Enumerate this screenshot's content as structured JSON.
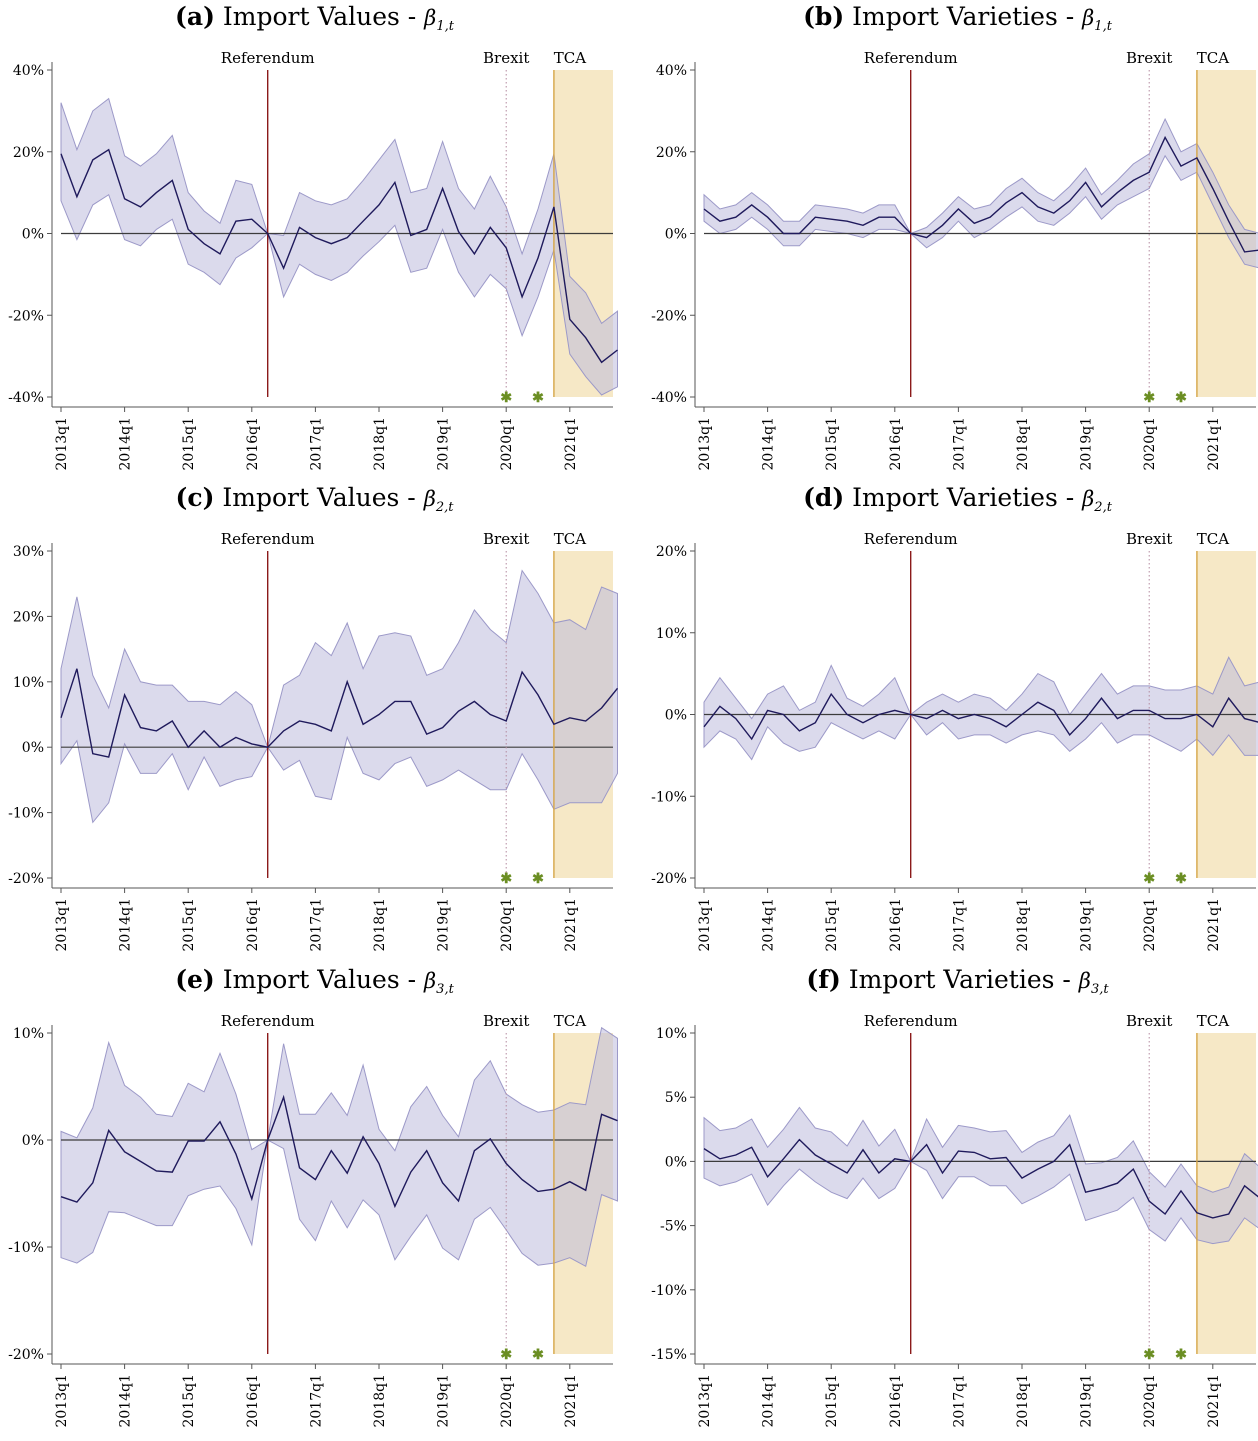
{
  "colors": {
    "line": "#1f1a5c",
    "band": "#bdbbdc",
    "band_stroke": "#9c99c8",
    "zero": "#3c3c3c",
    "referendum": "#8b1a1a",
    "brexit": "#b48aa0",
    "tca": "#d6a648",
    "tca_shade": "#f1dca8",
    "star": "#6b8e23"
  },
  "event_labels": {
    "referendum": "Referendum",
    "brexit": "Brexit",
    "tca": "TCA"
  },
  "star_glyph": "✱",
  "x_ticks": [
    "2013q1",
    "2014q1",
    "2015q1",
    "2016q1",
    "2017q1",
    "2018q1",
    "2019q1",
    "2020q1",
    "2021q1"
  ],
  "chart_data": [
    {
      "id": "a",
      "type": "line",
      "tag": "(a)",
      "title": "Import Values - ",
      "beta": "β",
      "beta_sub": "1,t",
      "x_start": "2013q1",
      "y_ticks": [
        40,
        20,
        0,
        -20,
        -40
      ],
      "ylim": [
        -40,
        40
      ],
      "events": {
        "referendum": "2016q2",
        "brexit": "2020q1",
        "tca": "2020q4"
      },
      "stars_at": [
        "2020q1",
        "2020q3"
      ],
      "series": [
        {
          "estimate": [
            19.5,
            9,
            18,
            20.5,
            8.5,
            6.5,
            10,
            13,
            1,
            -2.5,
            -5,
            3,
            3.5,
            0,
            -8.5,
            1.5,
            -1,
            -2.5,
            -1,
            3,
            7,
            12.5,
            -0.5,
            1,
            11,
            0.5,
            -5,
            1.5,
            -3.5,
            -15.5,
            -6,
            6.5,
            -21,
            -25.5,
            -31.5,
            -28.5
          ],
          "upper": [
            32,
            20.5,
            30,
            33,
            19,
            16.5,
            19.5,
            24,
            10,
            5.5,
            2.5,
            13,
            12,
            0,
            -0.5,
            10,
            8,
            7,
            8.5,
            13,
            18,
            23,
            10,
            11,
            22.5,
            11,
            6,
            14,
            6.5,
            -5,
            6,
            19.5,
            -10.5,
            -14.5,
            -22,
            -19
          ],
          "lower": [
            8,
            -1.5,
            7,
            9.5,
            -1.5,
            -3,
            1,
            3.5,
            -7.5,
            -9.5,
            -12.5,
            -6,
            -3.5,
            0,
            -15.5,
            -7.5,
            -10,
            -11.5,
            -9.5,
            -5.5,
            -2,
            2,
            -9.5,
            -8.5,
            1,
            -9.5,
            -15.5,
            -10,
            -13.5,
            -25,
            -15.5,
            -4,
            -29.5,
            -35,
            -39.5,
            -37.5
          ]
        }
      ]
    },
    {
      "id": "b",
      "type": "line",
      "tag": "(b)",
      "title": "Import Varieties - ",
      "beta": "β",
      "beta_sub": "1,t",
      "x_start": "2013q1",
      "y_ticks": [
        40,
        20,
        0,
        -20,
        -40
      ],
      "ylim": [
        -40,
        40
      ],
      "events": {
        "referendum": "2016q2",
        "brexit": "2020q1",
        "tca": "2020q4"
      },
      "stars_at": [
        "2020q1",
        "2020q3"
      ],
      "series": [
        {
          "estimate": [
            6,
            3,
            4,
            7,
            4,
            0,
            0,
            4,
            3.5,
            3,
            2,
            4,
            4,
            0,
            -1,
            2,
            6,
            2.5,
            4,
            7.5,
            10,
            6.5,
            5,
            8,
            12.5,
            6.5,
            10,
            13,
            15,
            23.5,
            16.5,
            18.5,
            11,
            3,
            -4.5,
            -4
          ],
          "upper": [
            9.5,
            6,
            7,
            10,
            7,
            3,
            3,
            7,
            6.5,
            6,
            5,
            7,
            7,
            0,
            1.5,
            5,
            9,
            6,
            7,
            11,
            13.5,
            10,
            8,
            11.5,
            16,
            9.5,
            13,
            17,
            19.5,
            28,
            20,
            22,
            15,
            7,
            1,
            0
          ],
          "lower": [
            3,
            0,
            1,
            4,
            1,
            -3,
            -3,
            1,
            0.5,
            0,
            -1,
            1,
            1,
            0,
            -3.5,
            -1,
            3,
            -1,
            1,
            4,
            6.5,
            3,
            2,
            5,
            9,
            3.5,
            7,
            9,
            11,
            19,
            13,
            15,
            7,
            -1,
            -7.5,
            -8.5
          ]
        }
      ]
    },
    {
      "id": "c",
      "type": "line",
      "tag": "(c)",
      "title": "Import Values - ",
      "beta": "β",
      "beta_sub": "2,t",
      "x_start": "2013q1",
      "y_ticks": [
        30,
        20,
        10,
        0,
        -10,
        -20
      ],
      "ylim": [
        -20,
        30
      ],
      "events": {
        "referendum": "2016q2",
        "brexit": "2020q1",
        "tca": "2020q4"
      },
      "stars_at": [
        "2020q1",
        "2020q3"
      ],
      "series": [
        {
          "estimate": [
            4.5,
            12,
            -1,
            -1.5,
            8,
            3,
            2.5,
            4,
            0,
            2.5,
            0,
            1.5,
            0.5,
            0,
            2.5,
            4,
            3.5,
            2.5,
            10,
            3.5,
            5,
            7,
            7,
            2,
            3,
            5.5,
            7,
            5,
            4,
            11.5,
            8,
            3.5,
            4.5,
            4,
            6,
            9
          ],
          "upper": [
            12,
            23,
            11,
            6,
            15,
            10,
            9.5,
            9.5,
            7,
            7,
            6.5,
            8.5,
            6.5,
            0,
            9.5,
            11,
            16,
            14,
            19,
            12,
            17,
            17.5,
            17,
            11,
            12,
            16,
            21,
            18,
            16,
            27,
            23.5,
            19,
            19.5,
            18,
            24.5,
            23.5
          ],
          "lower": [
            -2.5,
            1,
            -11.5,
            -8.5,
            0.5,
            -4,
            -4,
            -1,
            -6.5,
            -1.5,
            -6,
            -5,
            -4.5,
            0,
            -3.5,
            -2,
            -7.5,
            -8,
            1.5,
            -4,
            -5,
            -2.5,
            -1.5,
            -6,
            -5,
            -3.5,
            -5,
            -6.5,
            -6.5,
            -1,
            -5,
            -9.5,
            -8.5,
            -8.5,
            -8.5,
            -4
          ]
        }
      ]
    },
    {
      "id": "d",
      "type": "line",
      "tag": "(d)",
      "title": "Import Varieties - ",
      "beta": "β",
      "beta_sub": "2,t",
      "x_start": "2013q1",
      "y_ticks": [
        20,
        10,
        0,
        -10,
        -20
      ],
      "ylim": [
        -20,
        20
      ],
      "events": {
        "referendum": "2016q2",
        "brexit": "2020q1",
        "tca": "2020q4"
      },
      "stars_at": [
        "2020q1",
        "2020q3"
      ],
      "series": [
        {
          "estimate": [
            -1.5,
            1,
            -0.5,
            -3,
            0.5,
            0,
            -2,
            -1,
            2.5,
            0,
            -1,
            0,
            0.5,
            0,
            -0.5,
            0.5,
            -0.5,
            0,
            -0.5,
            -1.5,
            0,
            1.5,
            0.5,
            -2.5,
            -0.5,
            2,
            -0.5,
            0.5,
            0.5,
            -0.5,
            -0.5,
            0,
            -1.5,
            2,
            -0.5,
            -1
          ],
          "upper": [
            1.5,
            4.5,
            2,
            -0.5,
            2.5,
            3.5,
            0.5,
            1.5,
            6,
            2,
            1,
            2.5,
            4.5,
            0,
            1.5,
            2.5,
            1.5,
            2.5,
            2,
            0.5,
            2.5,
            5,
            4,
            0,
            2.5,
            5,
            2.5,
            3.5,
            3.5,
            3,
            3,
            3.5,
            2.5,
            7,
            3.5,
            4
          ],
          "lower": [
            -4,
            -2,
            -3,
            -5.5,
            -1.5,
            -3.5,
            -4.5,
            -4,
            -1,
            -2,
            -3,
            -2,
            -3,
            0,
            -2.5,
            -1,
            -3,
            -2.5,
            -2.5,
            -3.5,
            -2.5,
            -2,
            -2.5,
            -4.5,
            -3,
            -1,
            -3.5,
            -2.5,
            -2.5,
            -3.5,
            -4.5,
            -3,
            -5,
            -2.5,
            -5,
            -5
          ]
        }
      ]
    },
    {
      "id": "e",
      "type": "line",
      "tag": "(e)",
      "title": "Import Values - ",
      "beta": "β",
      "beta_sub": "3,t",
      "x_start": "2013q1",
      "y_ticks": [
        10,
        0,
        -10,
        -20
      ],
      "ylim": [
        -20,
        10
      ],
      "events": {
        "referendum": "2016q2",
        "brexit": "2020q1",
        "tca": "2020q4"
      },
      "stars_at": [
        "2020q1",
        "2020q3"
      ],
      "series": [
        {
          "estimate": [
            -5.3,
            -5.8,
            -4,
            0.9,
            -1.1,
            -2,
            -2.9,
            -3,
            -0.1,
            -0.1,
            1.7,
            -1.3,
            -5.5,
            0,
            4,
            -2.6,
            -3.7,
            -1,
            -3.1,
            0.3,
            -2.2,
            -6.2,
            -3,
            -1,
            -4,
            -5.7,
            -1,
            0.1,
            -2.2,
            -3.7,
            -4.8,
            -4.6,
            -3.9,
            -4.7,
            2.4,
            1.8
          ],
          "upper": [
            0.8,
            0.2,
            3,
            9.1,
            5.1,
            4,
            2.4,
            2.2,
            5.3,
            4.5,
            8.1,
            4.3,
            -0.9,
            0,
            9,
            2.4,
            2.4,
            4.4,
            2.3,
            7,
            1,
            -1,
            3.1,
            5,
            2.3,
            0.3,
            5.6,
            7.4,
            4.3,
            3.3,
            2.6,
            2.8,
            3.5,
            3.3,
            10.5,
            9.5
          ],
          "lower": [
            -11,
            -11.5,
            -10.5,
            -6.7,
            -6.8,
            -7.4,
            -8,
            -8,
            -5.2,
            -4.6,
            -4.3,
            -6.4,
            -9.8,
            0,
            -0.8,
            -7.4,
            -9.4,
            -5.7,
            -8.2,
            -5.6,
            -7,
            -11.2,
            -9,
            -7,
            -10.1,
            -11.2,
            -7.4,
            -6.3,
            -8.4,
            -10.6,
            -11.7,
            -11.5,
            -11,
            -11.8,
            -5.1,
            -5.7
          ]
        }
      ]
    },
    {
      "id": "f",
      "type": "line",
      "tag": "(f)",
      "title": "Import Varieties - ",
      "beta": "β",
      "beta_sub": "3,t",
      "x_start": "2013q1",
      "y_ticks": [
        10,
        5,
        0,
        -5,
        -10,
        -15
      ],
      "ylim": [
        -15,
        10
      ],
      "events": {
        "referendum": "2016q2",
        "brexit": "2020q1",
        "tca": "2020q4"
      },
      "stars_at": [
        "2020q1",
        "2020q3"
      ],
      "series": [
        {
          "estimate": [
            1,
            0.2,
            0.5,
            1.1,
            -1.2,
            0.2,
            1.7,
            0.5,
            -0.2,
            -0.9,
            0.9,
            -0.9,
            0.2,
            0,
            1.3,
            -0.9,
            0.8,
            0.7,
            0.2,
            0.3,
            -1.3,
            -0.6,
            0,
            1.3,
            -2.4,
            -2.1,
            -1.7,
            -0.6,
            -3.1,
            -4.1,
            -2.3,
            -4,
            -4.4,
            -4.1,
            -1.9,
            -2.9
          ],
          "upper": [
            3.4,
            2.4,
            2.6,
            3.3,
            1.1,
            2.5,
            4.2,
            2.6,
            2.3,
            1.2,
            3.2,
            1.2,
            2.5,
            0,
            3.3,
            1.1,
            2.8,
            2.6,
            2.3,
            2.4,
            0.7,
            1.5,
            2,
            3.6,
            -0.2,
            -0.1,
            0.3,
            1.6,
            -0.8,
            -2,
            -0.2,
            -1.9,
            -2.4,
            -2,
            0.6,
            -0.5
          ],
          "lower": [
            -1.3,
            -1.9,
            -1.6,
            -1,
            -3.4,
            -1.9,
            -0.6,
            -1.6,
            -2.4,
            -2.9,
            -1.3,
            -2.9,
            -2.1,
            0,
            -0.7,
            -2.9,
            -1.2,
            -1.2,
            -1.9,
            -1.9,
            -3.3,
            -2.7,
            -2,
            -1,
            -4.6,
            -4.2,
            -3.8,
            -2.8,
            -5.3,
            -6.2,
            -4.4,
            -6.1,
            -6.4,
            -6.2,
            -4.4,
            -5.3
          ]
        }
      ]
    }
  ]
}
